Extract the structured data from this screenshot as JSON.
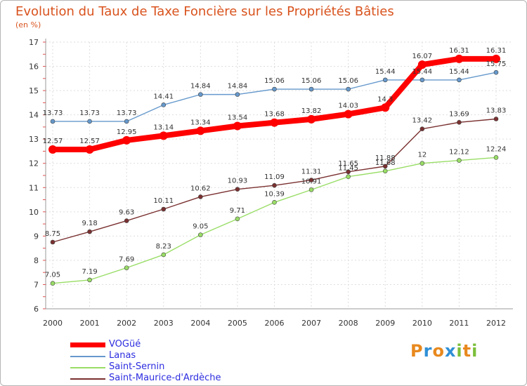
{
  "chart_data": {
    "type": "line",
    "title": "Evolution du Taux de Taxe Foncière sur les Propriétés Bâties",
    "subtitle": "(en %)",
    "xlabel": "",
    "ylabel": "",
    "ylim": [
      6,
      17
    ],
    "yticks": [
      "6",
      "7",
      "8",
      "9",
      "10",
      "11",
      "12",
      "13",
      "14",
      "15",
      "16",
      "17"
    ],
    "categories": [
      "2000",
      "2001",
      "2002",
      "2003",
      "2004",
      "2005",
      "2006",
      "2007",
      "2008",
      "2009",
      "2010",
      "2011",
      "2012"
    ],
    "grid": true,
    "series": [
      {
        "name": "VOGüé",
        "color": "#ff0000",
        "labels": [
          "12.57",
          "12.57",
          "12.95",
          "13.14",
          "13.34",
          "13.54",
          "13.68",
          "13.82",
          "14.03",
          "14.3",
          "16.07",
          "16.31",
          "16.31"
        ],
        "values": [
          12.57,
          12.57,
          12.95,
          13.14,
          13.34,
          13.54,
          13.68,
          13.82,
          14.03,
          14.3,
          16.07,
          16.31,
          16.31
        ]
      },
      {
        "name": "Lanas",
        "color": "#6699cc",
        "labels": [
          "13.73",
          "13.73",
          "13.73",
          "14.41",
          "14.84",
          "14.84",
          "15.06",
          "15.06",
          "15.06",
          "15.44",
          "15.44",
          "15.44",
          "15.75"
        ],
        "values": [
          13.73,
          13.73,
          13.73,
          14.41,
          14.84,
          14.84,
          15.06,
          15.06,
          15.06,
          15.44,
          15.44,
          15.44,
          15.75
        ]
      },
      {
        "name": "Saint-Sernin",
        "color": "#99dd66",
        "labels": [
          "7.05",
          "7.19",
          "7.69",
          "8.23",
          "9.05",
          "9.71",
          "10.39",
          "10.91",
          "11.45",
          "11.68",
          "12",
          "12.12",
          "12.24"
        ],
        "values": [
          7.05,
          7.19,
          7.69,
          8.23,
          9.05,
          9.71,
          10.39,
          10.91,
          11.45,
          11.68,
          12,
          12.12,
          12.24
        ]
      },
      {
        "name": "Saint-Maurice-d'Ardèche",
        "color": "#7a3030",
        "labels": [
          "8.75",
          "9.18",
          "9.63",
          "10.11",
          "10.62",
          "10.93",
          "11.09",
          "11.31",
          "11.65",
          "11.88",
          "13.42",
          "13.69",
          "13.83"
        ],
        "values": [
          8.75,
          9.18,
          9.63,
          10.11,
          10.62,
          10.93,
          11.09,
          11.31,
          11.65,
          11.88,
          13.42,
          13.69,
          13.83
        ]
      }
    ]
  },
  "legend_order": [
    0,
    1,
    2,
    3
  ],
  "logo": {
    "letters": [
      "P",
      "r",
      "o",
      "x",
      "i",
      "t",
      "i"
    ],
    "colors": [
      "#e8891e",
      "#2f8fd6",
      "#e8891e",
      "#2f8fd6",
      "#7bbf3a",
      "#e8891e",
      "#7bbf3a"
    ]
  }
}
